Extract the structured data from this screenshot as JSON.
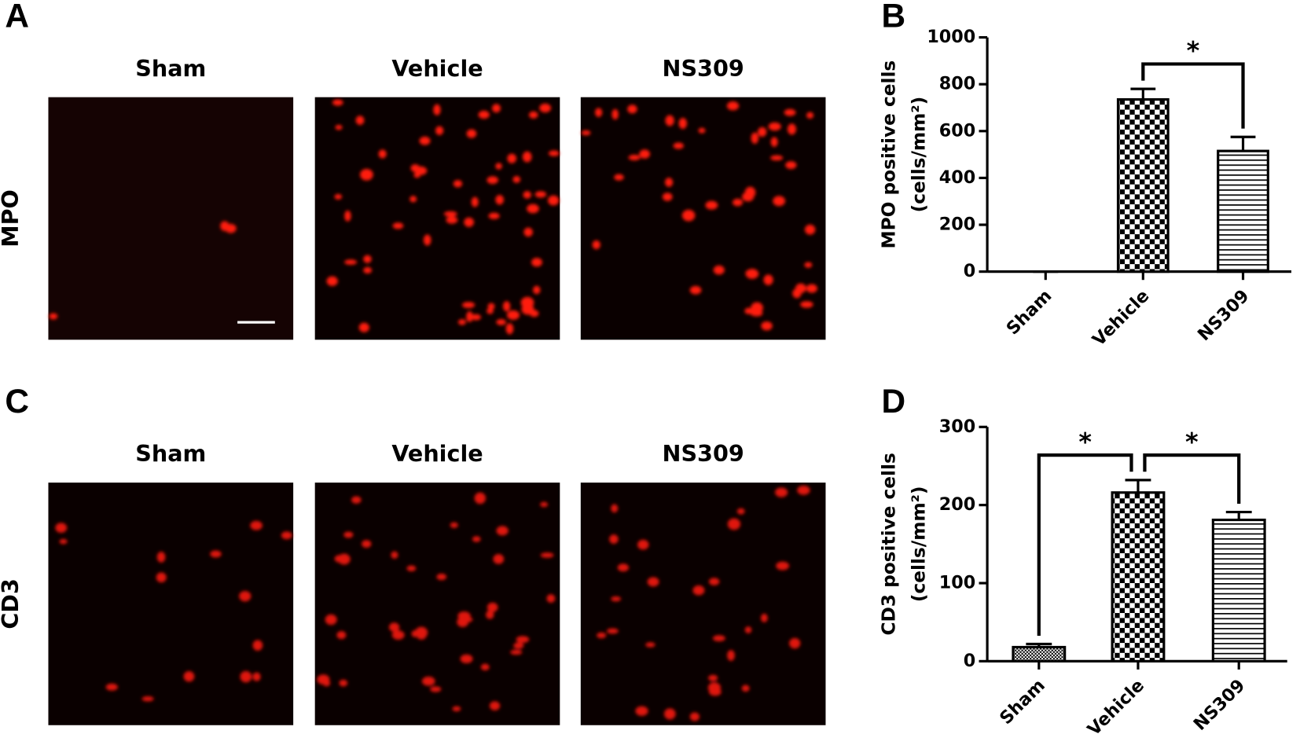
{
  "panels": [
    {
      "letter": "A",
      "row_label": "MPO",
      "columns": [
        "Sham",
        "Vehicle",
        "NS309"
      ],
      "dots": [
        3,
        60,
        45
      ]
    },
    {
      "letter": "C",
      "row_label": "CD3",
      "columns": [
        "Sham",
        "Vehicle",
        "NS309"
      ],
      "dots": [
        14,
        40,
        28
      ]
    }
  ],
  "chart_data": [
    {
      "type": "bar",
      "letter": "B",
      "ylabel": [
        "MPO positive cells",
        "(cells/mm²)"
      ],
      "categories": [
        "Sham",
        "Vehicle",
        "NS309"
      ],
      "values": [
        0,
        735,
        515
      ],
      "errors": [
        0,
        45,
        60
      ],
      "patterns": [
        "dots",
        "checker",
        "hlines"
      ],
      "ylim": [
        0,
        1000
      ],
      "yticks": [
        0,
        200,
        400,
        600,
        800,
        1000
      ],
      "annotations": [
        {
          "text": "*",
          "between": [
            1,
            2
          ]
        }
      ]
    },
    {
      "type": "bar",
      "letter": "D",
      "ylabel": [
        "CD3 positive cells",
        "(cells/mm²)"
      ],
      "categories": [
        "Sham",
        "Vehicle",
        "NS309"
      ],
      "values": [
        18,
        216,
        181
      ],
      "errors": [
        4,
        16,
        10
      ],
      "patterns": [
        "dots",
        "checker",
        "hlines"
      ],
      "ylim": [
        0,
        300
      ],
      "yticks": [
        0,
        100,
        200,
        300
      ],
      "annotations": [
        {
          "text": "*",
          "between": [
            0,
            1
          ]
        },
        {
          "text": "*",
          "between": [
            1,
            2
          ]
        }
      ]
    }
  ]
}
